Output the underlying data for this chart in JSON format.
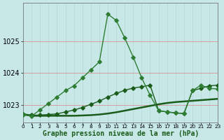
{
  "title": "Graphe pression niveau de la mer (hPa)",
  "bg_color": "#c8e8e8",
  "grid_color_h": "#d4a0a0",
  "grid_color_v": "#b8d8d8",
  "dark_green": "#1a5c1a",
  "mid_green": "#2e7d32",
  "xlim": [
    0,
    23
  ],
  "ylim_bottom": 1022.45,
  "ylim_top": 1026.2,
  "yticks": [
    1023,
    1024,
    1025
  ],
  "xticks": [
    0,
    1,
    2,
    3,
    4,
    5,
    6,
    7,
    8,
    9,
    10,
    11,
    12,
    13,
    14,
    15,
    16,
    17,
    18,
    19,
    20,
    21,
    22,
    23
  ],
  "s1_x": [
    0,
    1,
    2,
    3,
    4,
    5,
    6,
    7,
    8,
    9,
    10,
    11,
    12,
    13,
    14,
    15,
    16,
    17,
    18,
    19,
    20,
    21,
    22,
    23
  ],
  "s1_y": [
    1022.7,
    1022.65,
    1022.85,
    1023.05,
    1023.25,
    1023.45,
    1023.6,
    1023.85,
    1024.1,
    1024.35,
    1025.85,
    1025.65,
    1025.1,
    1024.5,
    1023.85,
    1023.3,
    1022.82,
    1022.78,
    1022.75,
    1022.73,
    1023.45,
    1023.62,
    1023.52,
    1023.5
  ],
  "s2_x": [
    0,
    1,
    2,
    3,
    4,
    5,
    6,
    7,
    8,
    9,
    10,
    11,
    12,
    13,
    14,
    15,
    16,
    17,
    18,
    19,
    20,
    21,
    22,
    23
  ],
  "s2_y": [
    1022.72,
    1022.68,
    1022.68,
    1022.7,
    1022.72,
    1022.78,
    1022.84,
    1022.92,
    1023.02,
    1023.12,
    1023.25,
    1023.36,
    1023.46,
    1023.53,
    1023.57,
    1023.62,
    1022.82,
    1022.78,
    1022.75,
    1022.73,
    1023.45,
    1023.52,
    1023.6,
    1023.62
  ],
  "s3_x": [
    0,
    1,
    2,
    3,
    4,
    5,
    6,
    7,
    8,
    9,
    10,
    11,
    12,
    13,
    14,
    15,
    16,
    17,
    18,
    19,
    20,
    21,
    22,
    23
  ],
  "s3_y": [
    1022.7,
    1022.66,
    1022.66,
    1022.66,
    1022.66,
    1022.66,
    1022.66,
    1022.67,
    1022.68,
    1022.7,
    1022.73,
    1022.77,
    1022.82,
    1022.87,
    1022.92,
    1022.97,
    1023.02,
    1023.06,
    1023.09,
    1023.11,
    1023.13,
    1023.15,
    1023.17,
    1023.19
  ],
  "ms": 2.8,
  "lw": 1.0,
  "xlabel_fontsize": 7,
  "ytick_fontsize": 7,
  "xtick_fontsize": 5.2
}
